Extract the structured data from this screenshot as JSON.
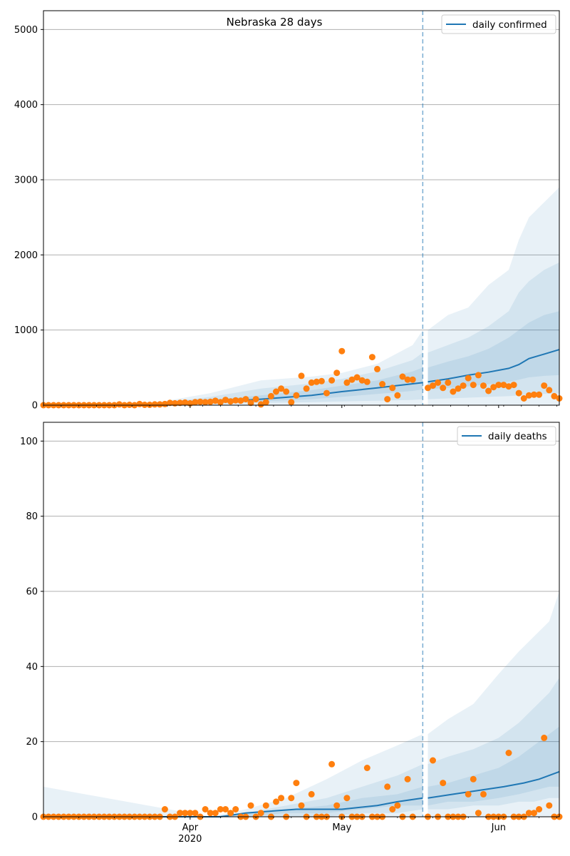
{
  "colors": {
    "line": "#1f77b4",
    "points": "#ff7f0e",
    "band": "#1f77b4",
    "grid": "#b0b0b0",
    "vline": "#1f77b4"
  },
  "chart_data": [
    {
      "type": "line",
      "title": "Nebraska 28 days",
      "legend": "daily confirmed",
      "legend_position": "top-right",
      "grid": "horizontal",
      "ylim": [
        0,
        5250
      ],
      "yticks": [
        0,
        1000,
        2000,
        3000,
        4000,
        5000
      ],
      "xlim": [
        "2020-03-03",
        "2020-06-13"
      ],
      "xticks": [
        {
          "date": "2020-04-01",
          "label": "Apr",
          "sublabel": "2020"
        },
        {
          "date": "2020-05-01",
          "label": "May",
          "sublabel": ""
        },
        {
          "date": "2020-06-01",
          "label": "Jun",
          "sublabel": ""
        }
      ],
      "forecast_start": "2020-05-17",
      "fitted": {
        "date": [
          "2020-03-03",
          "2020-03-25",
          "2020-04-05",
          "2020-04-15",
          "2020-04-25",
          "2020-05-01",
          "2020-05-08",
          "2020-05-17"
        ],
        "value": [
          0,
          0,
          40,
          80,
          130,
          180,
          230,
          300
        ]
      },
      "forecast": {
        "date": [
          "2020-05-18",
          "2020-05-22",
          "2020-05-26",
          "2020-05-30",
          "2020-06-03",
          "2020-06-05",
          "2020-06-07",
          "2020-06-10",
          "2020-06-13"
        ],
        "value": [
          310,
          350,
          400,
          440,
          490,
          540,
          620,
          680,
          740
        ]
      },
      "band_outer": {
        "date": [
          "2020-03-03",
          "2020-03-25",
          "2020-04-05",
          "2020-04-15",
          "2020-04-25",
          "2020-05-01",
          "2020-05-08",
          "2020-05-15",
          "2020-05-17"
        ],
        "low": [
          0,
          0,
          0,
          0,
          0,
          0,
          0,
          0,
          0
        ],
        "high": [
          0,
          30,
          160,
          330,
          380,
          430,
          550,
          800,
          1000
        ],
        "fdate": [
          "2020-05-18",
          "2020-05-22",
          "2020-05-26",
          "2020-05-30",
          "2020-06-03",
          "2020-06-05",
          "2020-06-07",
          "2020-06-10",
          "2020-06-13"
        ],
        "flow": [
          0,
          0,
          0,
          0,
          0,
          0,
          0,
          0,
          0
        ],
        "fhigh": [
          1000,
          1200,
          1300,
          1600,
          1800,
          2200,
          2500,
          2700,
          2900
        ]
      },
      "band_inner": {
        "date": [
          "2020-03-03",
          "2020-03-25",
          "2020-04-05",
          "2020-04-15",
          "2020-04-25",
          "2020-05-01",
          "2020-05-08",
          "2020-05-15",
          "2020-05-17"
        ],
        "low": [
          0,
          0,
          10,
          30,
          40,
          50,
          60,
          70,
          80
        ],
        "high": [
          0,
          20,
          110,
          220,
          290,
          350,
          450,
          600,
          700
        ],
        "fdate": [
          "2020-05-18",
          "2020-05-22",
          "2020-05-26",
          "2020-05-30",
          "2020-06-03",
          "2020-06-05",
          "2020-06-07",
          "2020-06-10",
          "2020-06-13"
        ],
        "flow": [
          80,
          90,
          100,
          110,
          120,
          130,
          140,
          150,
          160
        ],
        "fhigh": [
          700,
          800,
          900,
          1050,
          1250,
          1500,
          1650,
          1800,
          1900
        ]
      },
      "band_core": {
        "date": [
          "2020-03-03",
          "2020-03-25",
          "2020-04-05",
          "2020-04-15",
          "2020-04-25",
          "2020-05-01",
          "2020-05-08",
          "2020-05-15",
          "2020-05-17"
        ],
        "low": [
          0,
          0,
          20,
          50,
          80,
          110,
          150,
          190,
          210
        ],
        "high": [
          0,
          10,
          70,
          130,
          200,
          260,
          330,
          450,
          500
        ],
        "fdate": [
          "2020-05-18",
          "2020-05-22",
          "2020-05-26",
          "2020-05-30",
          "2020-06-03",
          "2020-06-05",
          "2020-06-07",
          "2020-06-10",
          "2020-06-13"
        ],
        "flow": [
          210,
          230,
          250,
          280,
          310,
          340,
          370,
          390,
          400
        ],
        "fhigh": [
          500,
          580,
          650,
          750,
          900,
          1000,
          1100,
          1200,
          1250
        ]
      },
      "observed": {
        "start": "2020-03-03",
        "values": [
          0,
          0,
          0,
          0,
          0,
          0,
          0,
          0,
          0,
          0,
          0,
          0,
          0,
          0,
          0,
          10,
          0,
          5,
          0,
          15,
          5,
          5,
          10,
          10,
          15,
          30,
          25,
          30,
          35,
          25,
          40,
          45,
          40,
          45,
          60,
          40,
          70,
          50,
          65,
          60,
          80,
          30,
          80,
          10,
          40,
          120,
          180,
          220,
          180,
          40,
          130,
          390,
          220,
          300,
          310,
          320,
          160,
          330,
          430,
          720,
          300,
          340,
          370,
          330,
          310,
          640,
          480,
          280,
          80,
          230,
          130,
          380,
          340,
          340,
          null,
          null,
          230,
          260,
          300,
          230,
          300,
          180,
          220,
          260,
          360,
          270,
          400,
          260,
          190,
          240,
          270,
          270,
          250,
          270,
          160,
          90,
          130,
          140,
          140,
          260,
          200,
          120,
          90
        ]
      }
    },
    {
      "type": "line",
      "title": "",
      "legend": "daily deaths",
      "legend_position": "top-right",
      "grid": "horizontal",
      "ylim": [
        0,
        105
      ],
      "yticks": [
        0,
        20,
        40,
        60,
        80,
        100
      ],
      "xlim": [
        "2020-03-03",
        "2020-06-13"
      ],
      "xticks": [
        {
          "date": "2020-04-01",
          "label": "Apr",
          "sublabel": "2020"
        },
        {
          "date": "2020-05-01",
          "label": "May",
          "sublabel": ""
        },
        {
          "date": "2020-06-01",
          "label": "Jun",
          "sublabel": ""
        }
      ],
      "forecast_start": "2020-05-17",
      "fitted": {
        "date": [
          "2020-03-03",
          "2020-04-07",
          "2020-04-12",
          "2020-04-22",
          "2020-05-01",
          "2020-05-08",
          "2020-05-12",
          "2020-05-17"
        ],
        "value": [
          0,
          0,
          1,
          2,
          2,
          3,
          4,
          5
        ]
      },
      "forecast": {
        "date": [
          "2020-05-18",
          "2020-05-23",
          "2020-05-28",
          "2020-06-02",
          "2020-06-06",
          "2020-06-09",
          "2020-06-11",
          "2020-06-13"
        ],
        "value": [
          5,
          6,
          7,
          8,
          9,
          10,
          11,
          12
        ]
      },
      "band_outer": {
        "date": [
          "2020-03-03",
          "2020-04-05",
          "2020-04-12",
          "2020-04-20",
          "2020-04-28",
          "2020-05-05",
          "2020-05-12",
          "2020-05-17"
        ],
        "low": [
          0,
          0,
          0,
          0,
          0,
          0,
          0,
          0
        ],
        "high": [
          8,
          0,
          2,
          5,
          10,
          15,
          19,
          22
        ],
        "fdate": [
          "2020-05-18",
          "2020-05-22",
          "2020-05-27",
          "2020-06-01",
          "2020-06-05",
          "2020-06-08",
          "2020-06-11",
          "2020-06-13"
        ],
        "flow": [
          0,
          0,
          0,
          0,
          0,
          0,
          0,
          0
        ],
        "fhigh": [
          22,
          26,
          30,
          38,
          44,
          48,
          52,
          60
        ]
      },
      "band_inner": {
        "date": [
          "2020-03-03",
          "2020-04-05",
          "2020-04-12",
          "2020-04-20",
          "2020-04-28",
          "2020-05-05",
          "2020-05-12",
          "2020-05-17"
        ],
        "low": [
          0,
          0,
          0,
          0,
          0,
          1,
          1,
          2
        ],
        "high": [
          0,
          0,
          1,
          3,
          5,
          8,
          11,
          14
        ],
        "fdate": [
          "2020-05-18",
          "2020-05-22",
          "2020-05-27",
          "2020-06-01",
          "2020-06-05",
          "2020-06-08",
          "2020-06-11",
          "2020-06-13"
        ],
        "flow": [
          2,
          2,
          3,
          3,
          4,
          4,
          5,
          5
        ],
        "fhigh": [
          14,
          16,
          18,
          21,
          25,
          29,
          33,
          37
        ]
      },
      "band_core": {
        "date": [
          "2020-03-03",
          "2020-04-05",
          "2020-04-12",
          "2020-04-20",
          "2020-04-28",
          "2020-05-05",
          "2020-05-12",
          "2020-05-17"
        ],
        "low": [
          0,
          0,
          0,
          1,
          1,
          2,
          3,
          3
        ],
        "high": [
          0,
          0,
          1,
          2,
          3,
          5,
          6,
          8
        ],
        "fdate": [
          "2020-05-18",
          "2020-05-22",
          "2020-05-27",
          "2020-06-01",
          "2020-06-05",
          "2020-06-08",
          "2020-06-11",
          "2020-06-13"
        ],
        "flow": [
          3,
          4,
          4,
          5,
          6,
          7,
          8,
          8
        ],
        "fhigh": [
          8,
          9,
          11,
          13,
          16,
          19,
          22,
          24
        ]
      },
      "observed": {
        "start": "2020-03-03",
        "values": [
          0,
          0,
          0,
          0,
          0,
          0,
          0,
          0,
          0,
          0,
          0,
          0,
          0,
          0,
          0,
          0,
          0,
          0,
          0,
          0,
          0,
          0,
          0,
          0,
          2,
          0,
          0,
          1,
          1,
          1,
          1,
          0,
          2,
          1,
          1,
          2,
          2,
          1,
          2,
          0,
          0,
          3,
          0,
          1,
          3,
          0,
          4,
          5,
          0,
          5,
          9,
          3,
          0,
          6,
          0,
          0,
          0,
          14,
          3,
          0,
          5,
          0,
          0,
          0,
          13,
          0,
          0,
          0,
          8,
          2,
          3,
          0,
          10,
          0,
          null,
          null,
          0,
          15,
          0,
          9,
          0,
          0,
          0,
          0,
          6,
          10,
          1,
          6,
          0,
          0,
          0,
          0,
          17,
          0,
          0,
          0,
          1,
          1,
          2,
          21,
          3,
          0,
          0
        ]
      }
    }
  ]
}
